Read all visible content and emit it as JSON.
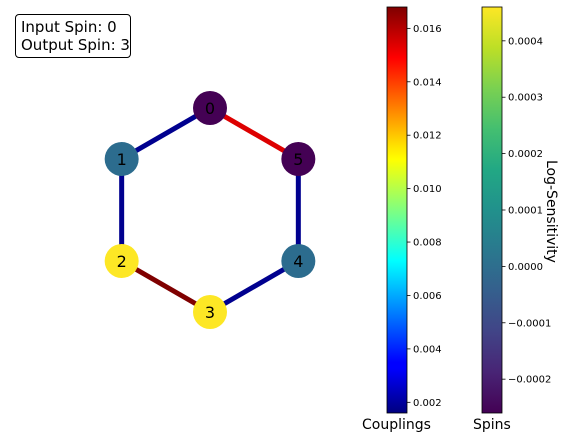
{
  "info": {
    "input_label": "Input Spin: 0",
    "output_label": "Output Spin: 3"
  },
  "graph": {
    "nodes": [
      {
        "id": "0",
        "color": "#440154"
      },
      {
        "id": "1",
        "color": "#2c6c8e"
      },
      {
        "id": "2",
        "color": "#fde725"
      },
      {
        "id": "3",
        "color": "#fde725"
      },
      {
        "id": "4",
        "color": "#2c6c8e"
      },
      {
        "id": "5",
        "color": "#440154"
      }
    ],
    "edges": [
      {
        "from": "0",
        "to": "1",
        "color": "#00008f"
      },
      {
        "from": "1",
        "to": "2",
        "color": "#00008f"
      },
      {
        "from": "2",
        "to": "3",
        "color": "#7f0000"
      },
      {
        "from": "3",
        "to": "4",
        "color": "#00008f"
      },
      {
        "from": "4",
        "to": "5",
        "color": "#00008f"
      },
      {
        "from": "5",
        "to": "0",
        "color": "#dd0000"
      }
    ]
  },
  "colorbars": {
    "couplings": {
      "label": "Couplings",
      "colormap": "jet",
      "range": [
        0.0016,
        0.0168
      ],
      "ticks": [
        "0.002",
        "0.004",
        "0.006",
        "0.008",
        "0.010",
        "0.012",
        "0.014",
        "0.016"
      ]
    },
    "spins": {
      "label": "Spins",
      "side_label": "Log-Sensitivity",
      "colormap": "viridis",
      "range": [
        -0.00026,
        0.00046
      ],
      "ticks": [
        "−0.0002",
        "−0.0001",
        "0.0000",
        "0.0001",
        "0.0002",
        "0.0003",
        "0.0004"
      ]
    }
  }
}
